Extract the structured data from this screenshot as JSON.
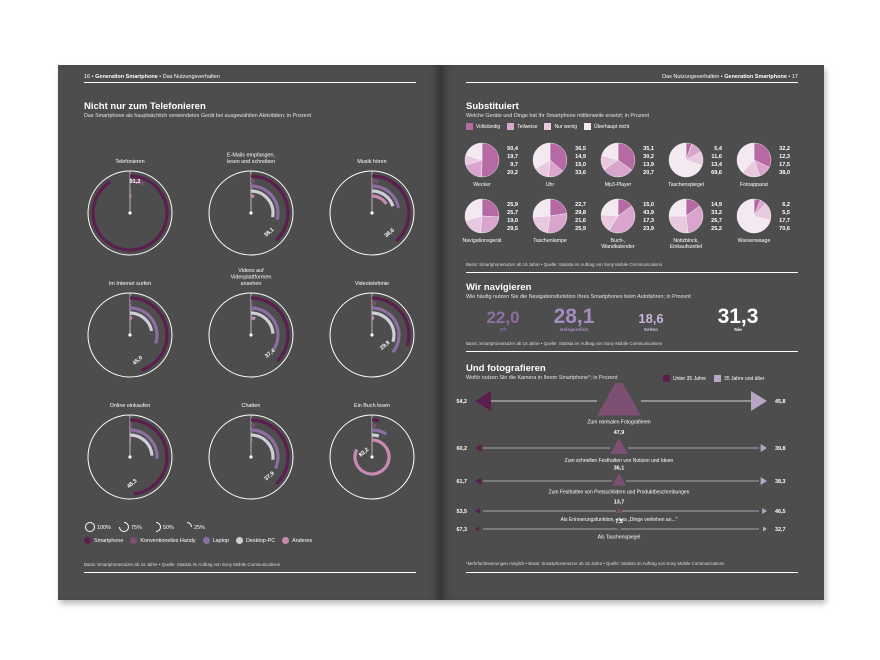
{
  "left": {
    "header_page": "16",
    "header_section": "Generation Smartphone",
    "header_topic": "Das Nutzungsverhalten",
    "title": "Nicht nur zum Telefonieren",
    "subtitle": "Das Smartphone als hauptsächlich verwendetes Gerät bei ausgewählten Aktivitäten; in Prozent",
    "scale_labels": [
      "100%",
      "75%",
      "50%",
      "25%"
    ],
    "device_legend": [
      "Smartphone",
      "Konventionelles Handy",
      "Laptop",
      "Desktop-PC",
      "Anderes"
    ],
    "source": "Basis: Smartphonenutzer ab 16 Jahre • Quelle: Statista im Auftrag von Sony Mobile Communications"
  },
  "right": {
    "header_topic": "Das Nutzungsverhalten",
    "header_section": "Generation Smartphone",
    "header_page": "17",
    "substituiert": {
      "title": "Substituiert",
      "subtitle": "Welche Geräte und Dinge hat Ihr Smartphone mittlerweile ersetzt; in Prozent",
      "legend": [
        "Vollständig",
        "Teilweise",
        "Nur wenig",
        "Überhaupt nicht"
      ],
      "source": "Basis: Smartphonenutzer ab 16 Jahre • Quelle: Statista im Auftrag von Sony Mobile Communications"
    },
    "navigieren": {
      "title": "Wir navigieren",
      "subtitle": "Wie häufig nutzen Sie die Navigationsfunktion Ihres Smartphones beim Autofahren; in Prozent",
      "stats": [
        {
          "value": "22,0",
          "label": "Oft"
        },
        {
          "value": "28,1",
          "label": "Gelegentlich"
        },
        {
          "value": "18,6",
          "label": "Selten"
        },
        {
          "value": "31,3",
          "label": "Nie"
        }
      ],
      "source": "Basis: Smartphonenutzer ab 16 Jahre • Quelle: Statista im Auftrag von Sony Mobile Communications"
    },
    "fotografieren": {
      "title": "Und fotografieren",
      "subtitle": "Wofür nutzen Sie die Kamera in Ihrem Smartphone*; in Prozent",
      "legend": [
        "Unter 35 Jahre",
        "35 Jahre und älter"
      ],
      "footnote": "*Mehrfachnennungen möglich • Basis: Smartphonenutzer ab 16 Jahre • Quelle: Statista im Auftrag von Sony Mobile Communications"
    }
  },
  "chart_data": [
    {
      "type": "radial-bar",
      "title": "Nicht nur zum Telefonieren",
      "series_names": [
        "Smartphone",
        "Konventionelles Handy",
        "Laptop",
        "Desktop-PC",
        "Anderes"
      ],
      "colors": [
        "#5c1d4f",
        "#7d4f72",
        "#8c6ea3",
        "#cfcfd8",
        "#c88ab3"
      ],
      "categories": [
        {
          "label": "Telefonieren",
          "values": [
            91.2,
            7,
            0.3,
            0.2,
            1.3
          ],
          "shown": "91,2"
        },
        {
          "label": "E-Mails empfangen, lesen und schreiben",
          "values": [
            38.1,
            2,
            29,
            28,
            3
          ],
          "shown": "38,1"
        },
        {
          "label": "Musik hören",
          "values": [
            38.6,
            3,
            22,
            20,
            16
          ],
          "shown": "38,6"
        },
        {
          "label": "Im Internet surfen",
          "values": [
            45.0,
            1,
            30,
            22,
            2
          ],
          "shown": "45,0"
        },
        {
          "label": "Videos auf Videoplattformen ansehen",
          "values": [
            37.4,
            1,
            34,
            24,
            4
          ],
          "shown": "37,4"
        },
        {
          "label": "Videotelefonie",
          "values": [
            29.8,
            2,
            36,
            30,
            2
          ],
          "shown": "29,8"
        },
        {
          "label": "Online einkaufen",
          "values": [
            48.3,
            1,
            26,
            24,
            1
          ],
          "shown": "48,3"
        },
        {
          "label": "Chatten",
          "values": [
            37.9,
            2,
            32,
            27,
            1
          ],
          "shown": "37,9"
        },
        {
          "label": "Ein Buch lesen",
          "values": [
            3.0,
            2,
            9,
            5,
            82.2
          ],
          "shown": "82,2"
        }
      ]
    },
    {
      "type": "pie",
      "title": "Substituiert",
      "series_names": [
        "Vollständig",
        "Teilweise",
        "Nur wenig",
        "Überhaupt nicht"
      ],
      "colors": [
        "#b56aa3",
        "#d9a5cc",
        "#e8c9e0",
        "#f4e8f1"
      ],
      "items": [
        {
          "label": "Wecker",
          "values": [
            50.4,
            19.7,
            9.7,
            20.2
          ],
          "shown": [
            "50,4",
            "19,7",
            "9,7",
            "20,2"
          ]
        },
        {
          "label": "Uhr",
          "values": [
            36.5,
            14.9,
            15.0,
            33.6
          ],
          "shown": [
            "36,5",
            "14,9",
            "15,0",
            "33,6"
          ]
        },
        {
          "label": "Mp3-Player",
          "values": [
            35.1,
            30.2,
            13.9,
            20.7
          ],
          "shown": [
            "35,1",
            "30,2",
            "13,9",
            "20,7"
          ]
        },
        {
          "label": "Taschenspiegel",
          "values": [
            5.4,
            11.6,
            13.4,
            69.6
          ],
          "shown": [
            "5,4",
            "11,6",
            "13,4",
            "69,6"
          ]
        },
        {
          "label": "Fotoapparat",
          "values": [
            32.2,
            12.3,
            17.5,
            38.0
          ],
          "shown": [
            "32,2",
            "12,3",
            "17,5",
            "38,0"
          ]
        },
        {
          "label": "Navigationsgerät",
          "values": [
            25.9,
            25.7,
            19.0,
            29.5
          ],
          "shown": [
            "25,9",
            "25,7",
            "19,0",
            "29,5"
          ]
        },
        {
          "label": "Taschenlampe",
          "values": [
            22.7,
            29.8,
            21.6,
            25.9
          ],
          "shown": [
            "22,7",
            "29,8",
            "21,6",
            "25,9"
          ]
        },
        {
          "label": "Buch-, Wandkalender",
          "values": [
            15.0,
            43.9,
            17.3,
            23.9
          ],
          "shown": [
            "15,0",
            "43,9",
            "17,3",
            "23,9"
          ]
        },
        {
          "label": "Notizblock, Einkaufszettel",
          "values": [
            14.9,
            33.2,
            26.7,
            25.2
          ],
          "shown": [
            "14,9",
            "33,2",
            "26,7",
            "25,2"
          ]
        },
        {
          "label": "Wasserwaage",
          "values": [
            6.2,
            5.5,
            17.7,
            70.6
          ],
          "shown": [
            "6,2",
            "5,5",
            "17,7",
            "70,6"
          ]
        }
      ]
    },
    {
      "type": "arrow-triangle",
      "title": "Und fotografieren",
      "series_names": [
        "Unter 35 Jahre",
        "35 Jahre und älter"
      ],
      "colors": [
        "#5c1d4f",
        "#b8a6c4"
      ],
      "rows": [
        {
          "label": "Zum normalen Fotografieren",
          "total": "92,6",
          "under35": "54,2",
          "over35": "45,8",
          "t": 92.6
        },
        {
          "label": "Zum schnellen Festhalten von Notizen und Ideen",
          "total": "47,9",
          "under35": "60,2",
          "over35": "39,8",
          "t": 47.9
        },
        {
          "label": "Zum Festhalten von Preisschildern und Produktbeschreibungen",
          "total": "36,1",
          "under35": "61,7",
          "over35": "38,3",
          "t": 36.1
        },
        {
          "label": "Als Erinnerungsfunktion, etwa „Dinge verliehen an...\"",
          "total": "13,7",
          "under35": "53,5",
          "over35": "46,5",
          "t": 13.7
        },
        {
          "label": "Als Taschenspiegel",
          "total": "7,5",
          "under35": "67,3",
          "over35": "32,7",
          "t": 7.5
        }
      ]
    }
  ]
}
